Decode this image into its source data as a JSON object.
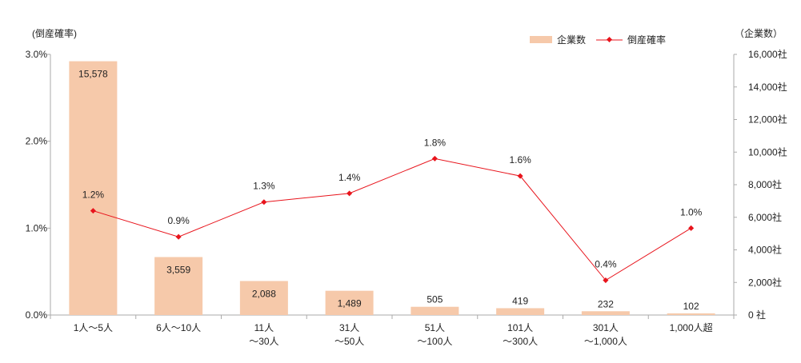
{
  "chart_data": {
    "type": "bar+line",
    "categories": [
      "1人～5人",
      "6人～10人",
      "11人\n～30人",
      "31人\n～50人",
      "51人\n～100人",
      "101人\n～300人",
      "301人\n～1,000人",
      "1,000人超"
    ],
    "series": [
      {
        "name": "企業数",
        "type": "bar",
        "axis": "right",
        "color": "#f6c9aa",
        "values": [
          15578,
          3559,
          2088,
          1489,
          505,
          419,
          232,
          102
        ],
        "labels": [
          "15,578",
          "3,559",
          "2,088",
          "1,489",
          "505",
          "419",
          "232",
          "102"
        ]
      },
      {
        "name": "倒産確率",
        "type": "line",
        "axis": "left",
        "color": "#e8141c",
        "values": [
          1.2,
          0.9,
          1.3,
          1.4,
          1.8,
          1.6,
          0.4,
          1.0
        ],
        "labels": [
          "1.2%",
          "0.9%",
          "1.3%",
          "1.4%",
          "1.8%",
          "1.6%",
          "0.4%",
          "1.0%"
        ]
      }
    ],
    "left_axis": {
      "label": "(倒産確率)",
      "ylim": [
        0,
        3
      ],
      "ticks": [
        "0.0%",
        "1.0%",
        "2.0%",
        "3.0%"
      ]
    },
    "right_axis": {
      "label": "（企業数）",
      "ylim": [
        0,
        16000
      ],
      "ticks": [
        "0 社",
        "2,000社",
        "4,000社",
        "6,000社",
        "8,000社",
        "10,000社",
        "12,000社",
        "14,000社",
        "16,000社"
      ]
    },
    "legend": {
      "placement": "top-right",
      "items": [
        "企業数",
        "倒産確率"
      ]
    },
    "grid": false
  }
}
